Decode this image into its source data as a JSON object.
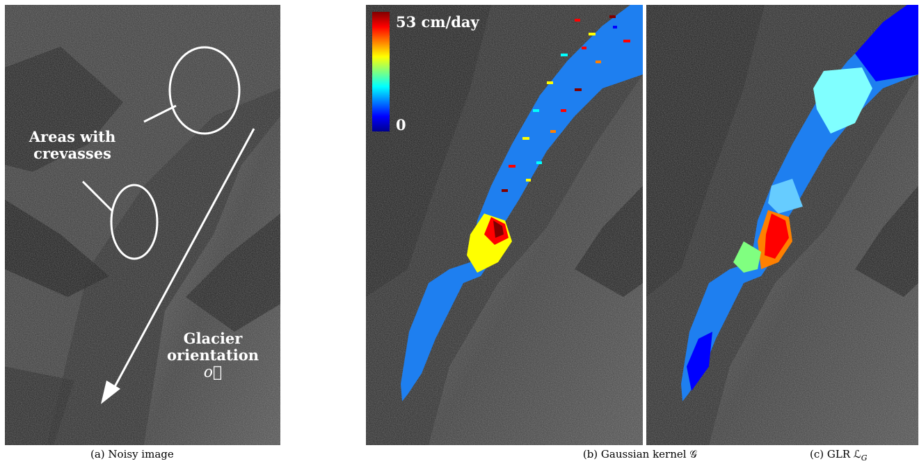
{
  "panels": [
    {
      "caption": "(a) Noisy image",
      "annotations": {
        "crevasse_label_line1": "Areas with",
        "crevasse_label_line2": "crevasses",
        "orientation_line1": "Glacier",
        "orientation_line2": "orientation",
        "orientation_symbol": "o⃗"
      }
    },
    {
      "caption": "(b) Gaussian kernel 𝒢",
      "colorbar": {
        "max_label": "53 cm/day",
        "min_label": "0"
      }
    },
    {
      "caption": "(c) GLR ℒ",
      "caption_subscript": "G"
    }
  ],
  "colors": {
    "glacier_base": "#1e7ff0",
    "colormap": [
      "#00008f",
      "#0000ff",
      "#00a0ff",
      "#00ffff",
      "#80ff80",
      "#ffff00",
      "#ff8000",
      "#ff0000",
      "#800000"
    ]
  }
}
